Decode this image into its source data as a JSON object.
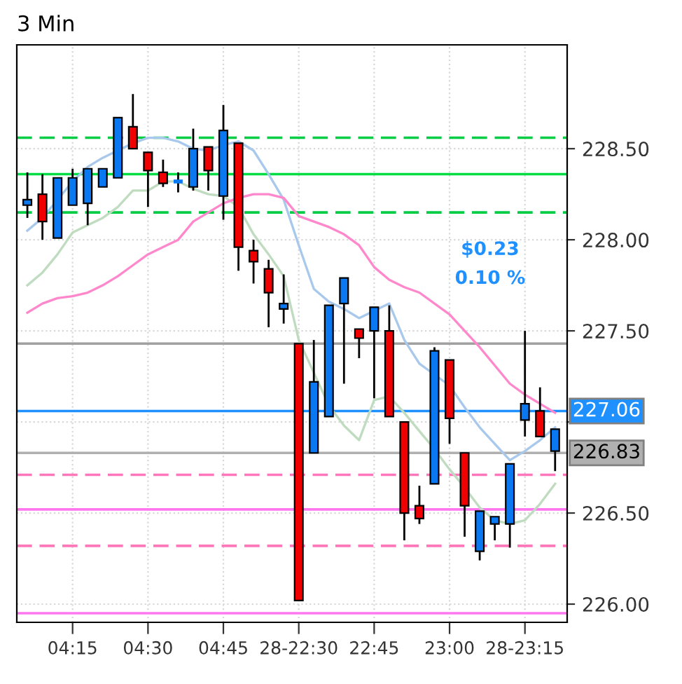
{
  "chart_data": {
    "type": "candlestick",
    "title": "3 Min",
    "categories": [
      null,
      null,
      null,
      "04:15",
      null,
      null,
      null,
      null,
      "04:30",
      null,
      null,
      null,
      null,
      "04:45",
      null,
      null,
      null,
      null,
      "28-22:30",
      null,
      null,
      null,
      null,
      "22:45",
      null,
      null,
      null,
      null,
      "23:00",
      null,
      null,
      null,
      null,
      "28-23:15",
      null,
      null
    ],
    "ohlc": [
      [
        228.19,
        228.37,
        228.12,
        228.22
      ],
      [
        228.25,
        228.36,
        228.0,
        228.1
      ],
      [
        228.01,
        228.34,
        228.01,
        228.34
      ],
      [
        228.19,
        228.39,
        228.19,
        228.34
      ],
      [
        228.2,
        228.39,
        228.08,
        228.39
      ],
      [
        228.29,
        228.39,
        228.29,
        228.39
      ],
      [
        228.34,
        228.67,
        228.34,
        228.67
      ],
      [
        228.62,
        228.8,
        228.5,
        228.5
      ],
      [
        228.48,
        228.48,
        228.18,
        228.38
      ],
      [
        228.37,
        228.44,
        228.29,
        228.31
      ],
      [
        228.32,
        228.37,
        228.26,
        228.32
      ],
      [
        228.29,
        228.61,
        228.27,
        228.5
      ],
      [
        228.51,
        228.51,
        228.27,
        228.38
      ],
      [
        228.24,
        228.74,
        228.11,
        228.6
      ],
      [
        228.53,
        228.53,
        227.83,
        227.96
      ],
      [
        227.94,
        228.0,
        227.76,
        227.88
      ],
      [
        227.84,
        227.89,
        227.52,
        227.71
      ],
      [
        227.62,
        227.81,
        227.54,
        227.65
      ],
      [
        227.43,
        227.43,
        226.02,
        226.02
      ],
      [
        226.83,
        227.45,
        226.83,
        227.22
      ],
      [
        227.03,
        227.64,
        227.03,
        227.64
      ],
      [
        227.65,
        227.79,
        227.21,
        227.79
      ],
      [
        227.51,
        227.51,
        227.35,
        227.46
      ],
      [
        227.5,
        227.63,
        227.13,
        227.63
      ],
      [
        227.5,
        227.64,
        227.03,
        227.03
      ],
      [
        227.0,
        227.0,
        226.35,
        226.5
      ],
      [
        226.54,
        226.65,
        226.44,
        226.47
      ],
      [
        226.66,
        227.41,
        226.66,
        227.39
      ],
      [
        227.34,
        227.34,
        226.88,
        227.02
      ],
      [
        226.83,
        226.83,
        226.37,
        226.54
      ],
      [
        226.29,
        226.51,
        226.24,
        226.51
      ],
      [
        226.44,
        226.48,
        226.35,
        226.48
      ],
      [
        226.44,
        226.77,
        226.31,
        226.77
      ],
      [
        227.01,
        227.5,
        226.92,
        227.1
      ],
      [
        227.06,
        227.19,
        226.92,
        226.92
      ],
      [
        226.84,
        226.96,
        226.73,
        226.96
      ]
    ],
    "colors": [
      "#0a78f0",
      "#f00000",
      "#0a78f0",
      "#0a78f0",
      "#0a78f0",
      "#0a78f0",
      "#0a78f0",
      "#f00000",
      "#f00000",
      "#f00000",
      "#0a78f0",
      "#0a78f0",
      "#f00000",
      "#0a78f0",
      "#f00000",
      "#f00000",
      "#f00000",
      "#0a78f0",
      "#f00000",
      "#0a78f0",
      "#0a78f0",
      "#0a78f0",
      "#f00000",
      "#0a78f0",
      "#f00000",
      "#f00000",
      "#f00000",
      "#0a78f0",
      "#f00000",
      "#f00000",
      "#0a78f0",
      "#0a78f0",
      "#0a78f0",
      "#0a78f0",
      "#f00000",
      "#0a78f0"
    ],
    "series": [
      {
        "type": "line",
        "color": "#a8c8ec",
        "values": [
          228.05,
          228.12,
          228.22,
          228.32,
          228.4,
          228.45,
          228.49,
          228.53,
          228.56,
          228.56,
          228.54,
          228.5,
          228.49,
          228.52,
          228.54,
          228.49,
          228.36,
          228.22,
          227.97,
          227.73,
          227.66,
          227.62,
          227.57,
          227.61,
          227.65,
          227.45,
          227.32,
          227.26,
          227.2,
          227.08,
          226.97,
          226.88,
          226.79,
          226.84,
          226.9,
          226.97
        ]
      },
      {
        "type": "line",
        "color": "#c0dcc0",
        "values": [
          227.75,
          227.82,
          227.92,
          228.04,
          228.08,
          228.12,
          228.18,
          228.27,
          228.27,
          228.32,
          228.32,
          228.28,
          228.25,
          228.24,
          228.18,
          228.03,
          227.92,
          227.8,
          227.45,
          227.27,
          227.09,
          226.98,
          226.9,
          227.12,
          227.14,
          227.05,
          226.95,
          226.85,
          226.74,
          226.64,
          226.53,
          226.46,
          226.44,
          226.46,
          226.55,
          226.66
        ]
      },
      {
        "type": "line",
        "color": "#ff88cc",
        "values": [
          227.6,
          227.65,
          227.68,
          227.69,
          227.71,
          227.75,
          227.8,
          227.86,
          227.92,
          227.96,
          228.0,
          228.1,
          228.15,
          228.2,
          228.23,
          228.25,
          228.25,
          228.23,
          228.13,
          228.1,
          228.07,
          228.03,
          227.97,
          227.85,
          227.78,
          227.74,
          227.71,
          227.65,
          227.59,
          227.5,
          227.41,
          227.31,
          227.21,
          227.15,
          227.1,
          227.05
        ]
      }
    ],
    "ylim": [
      225.9,
      229.07
    ],
    "yticks": [
      {
        "value": 226.0,
        "label": "226.00"
      },
      {
        "value": 226.5,
        "label": "226.50"
      },
      {
        "value": 227.0,
        "label": null
      },
      {
        "value": 227.5,
        "label": "227.50"
      },
      {
        "value": 228.0,
        "label": "228.00"
      },
      {
        "value": 228.5,
        "label": "228.50"
      }
    ],
    "ref_lines": [
      {
        "axis": "y",
        "value": 228.56,
        "color": "#00cc44",
        "line_style": "dashed"
      },
      {
        "axis": "y",
        "value": 228.36,
        "color": "#00dd44",
        "line_style": "solid"
      },
      {
        "axis": "y",
        "value": 228.15,
        "color": "#00cc44",
        "line_style": "dashed"
      },
      {
        "axis": "y",
        "value": 227.43,
        "color": "#a0a0a0",
        "line_style": "solid"
      },
      {
        "axis": "y",
        "value": 227.06,
        "color": "#1e90ff",
        "line_style": "solid",
        "label": "227.06"
      },
      {
        "axis": "y",
        "value": 226.83,
        "color": "#b0b0b0",
        "line_style": "solid",
        "label": "226.83"
      },
      {
        "axis": "y",
        "value": 226.71,
        "color": "#ff77bb",
        "line_style": "dashed"
      },
      {
        "axis": "y",
        "value": 226.52,
        "color": "#ff77ee",
        "line_style": "solid"
      },
      {
        "axis": "y",
        "value": 226.32,
        "color": "#ff77bb",
        "line_style": "dashed"
      },
      {
        "axis": "y",
        "value": 225.95,
        "color": "#ff77ee",
        "line_style": "solid"
      }
    ],
    "annotations": [
      "$0.23",
      "0.10 %"
    ],
    "grid": true
  }
}
